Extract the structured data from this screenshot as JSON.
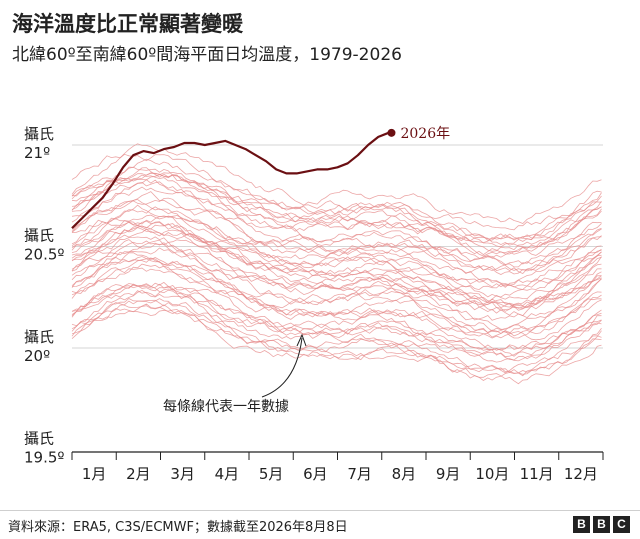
{
  "header": {
    "title": "海洋溫度比正常顯著變暖",
    "subtitle": "北緯60º至南緯60º間海平面日均溫度，1979-2026"
  },
  "footer": {
    "source": "資料來源：ERA5, C3S/ECMWF；數據截至2026年8月8日",
    "logo_letters": [
      "B",
      "B",
      "C"
    ]
  },
  "colors": {
    "past_years": "#e58a8a",
    "highlight": "#6b0f12",
    "grid": "#d6d6d6",
    "text": "#222222"
  },
  "chart_data": {
    "type": "line",
    "y_ticks": [
      {
        "value": 21,
        "label_top": "攝氏",
        "label_bottom": "21º"
      },
      {
        "value": 20.5,
        "label_top": "攝氏",
        "label_bottom": "20.5º"
      },
      {
        "value": 20,
        "label_top": "攝氏",
        "label_bottom": "20º"
      },
      {
        "value": 19.5,
        "label_top": "攝氏",
        "label_bottom": "19.5º"
      }
    ],
    "ylim": [
      19.5,
      21.2
    ],
    "categories": [
      "1月",
      "2月",
      "3月",
      "4月",
      "5月",
      "6月",
      "7月",
      "8月",
      "9月",
      "10月",
      "11月",
      "12月"
    ],
    "grid": true,
    "highlight_series": {
      "name": "2026年",
      "x_day": [
        1,
        8,
        15,
        22,
        29,
        36,
        43,
        50,
        57,
        64,
        71,
        78,
        85,
        92,
        99,
        106,
        113,
        120,
        127,
        134,
        141,
        148,
        155,
        162,
        169,
        176,
        183,
        190,
        197,
        204,
        211,
        218,
        220
      ],
      "values": [
        20.59,
        20.64,
        20.69,
        20.74,
        20.81,
        20.89,
        20.95,
        20.97,
        20.96,
        20.98,
        20.99,
        21.01,
        21.01,
        21.0,
        21.01,
        21.02,
        21.0,
        20.98,
        20.95,
        20.92,
        20.88,
        20.86,
        20.86,
        20.87,
        20.88,
        20.88,
        20.89,
        20.91,
        20.95,
        21.0,
        21.04,
        21.06,
        21.06
      ]
    },
    "background_years": {
      "count": 47,
      "annotation": "每條線代表一年數據"
    }
  }
}
